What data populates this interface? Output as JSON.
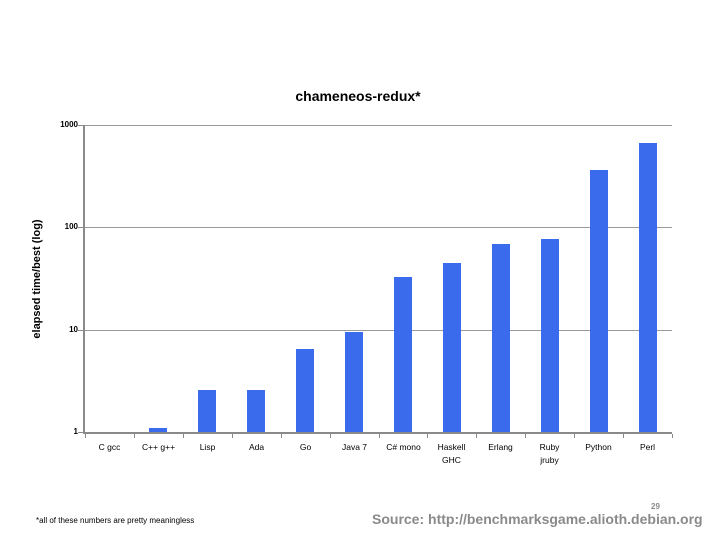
{
  "slide": {
    "footnote": "*all of these numbers are pretty meaningless",
    "source": "Source: http://benchmarksgame.alioth.debian.org",
    "page_number": "29"
  },
  "chart_data": {
    "type": "bar",
    "title": "chameneos-redux*",
    "xlabel": "",
    "ylabel": "elapsed time/best (log)",
    "y_scale": "log",
    "ylim": [
      1,
      1000
    ],
    "yticks": [
      1000,
      100,
      10,
      1
    ],
    "grid": true,
    "legend_position": "none",
    "bar_color": "#3a6bec",
    "gridline_color": "#9a9a9a",
    "axis_color": "#8a8a8a",
    "categories": [
      "C gcc",
      "C++ g++",
      "Lisp",
      "Ada",
      "Go",
      "Java 7",
      "C# mono",
      "Haskell\nGHC",
      "Erlang",
      "Ruby\njruby",
      "Python",
      "Perl"
    ],
    "values": [
      1.0,
      1.1,
      2.6,
      2.55,
      6.5,
      9.4,
      33,
      45,
      68,
      77,
      360,
      660
    ]
  }
}
